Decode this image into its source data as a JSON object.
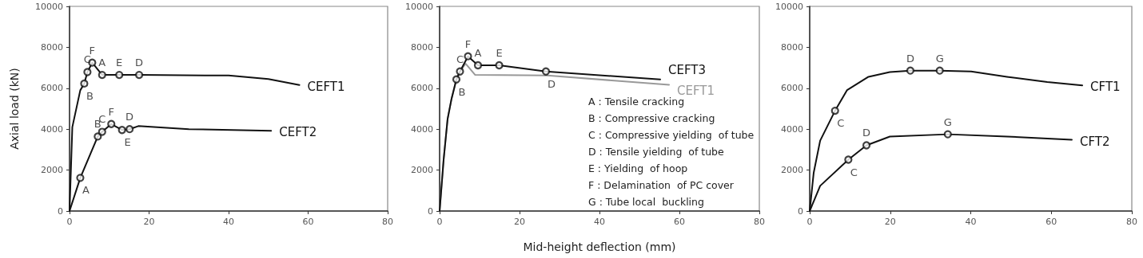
{
  "chart_data": [
    {
      "type": "line",
      "ylabel": "Axial load (kN)",
      "xlim": [
        0,
        80
      ],
      "xticks": [
        0,
        20,
        40,
        60,
        80
      ],
      "ylim": [
        0,
        10000
      ],
      "yticks": [
        0,
        2000,
        4000,
        6000,
        8000,
        10000
      ],
      "grid": false,
      "legend": false,
      "series": [
        {
          "name": "CEFT1",
          "marker": "none",
          "color": "#111111",
          "x": [
            0,
            0.7,
            2.7,
            3.7,
            4.5,
            5.7,
            8.2,
            12.5,
            17.5,
            40,
            50,
            57.8
          ],
          "values": [
            0,
            4100,
            5900,
            6230,
            6790,
            7250,
            6650,
            6650,
            6650,
            6620,
            6450,
            6160
          ]
        },
        {
          "name": "CEFT2",
          "marker": "none",
          "color": "#111111",
          "x": [
            0,
            2.7,
            7.1,
            8.2,
            10.5,
            13.2,
            15.1,
            17.3,
            30,
            50.7
          ],
          "values": [
            0,
            1620,
            3640,
            3870,
            4250,
            3960,
            4000,
            4150,
            4000,
            3920
          ]
        },
        {
          "type": "scatter",
          "marker": "circle",
          "color": "#111111",
          "x": [
            3.7,
            4.5,
            5.7,
            8.2,
            12.5,
            17.5
          ],
          "values": [
            6230,
            6790,
            7250,
            6650,
            6650,
            6650
          ],
          "value_labels": [
            "B",
            "C",
            "F",
            "A",
            "E",
            "D"
          ]
        },
        {
          "type": "scatter",
          "marker": "circle",
          "color": "#111111",
          "x": [
            2.7,
            7.1,
            8.2,
            10.5,
            13.2,
            15.1
          ],
          "values": [
            1620,
            3640,
            3870,
            4250,
            3960,
            4000
          ],
          "value_labels": [
            "A",
            "B",
            "C",
            "F",
            "E",
            "D"
          ]
        }
      ]
    },
    {
      "type": "line",
      "xlabel": "Mid-height deflection (mm)",
      "xlim": [
        0,
        80
      ],
      "xticks": [
        0,
        20,
        40,
        60,
        80
      ],
      "ylim": [
        0,
        10000
      ],
      "yticks": [
        0,
        2000,
        4000,
        6000,
        8000,
        10000
      ],
      "grid": false,
      "legend": false,
      "series": [
        {
          "name": "CEFT1",
          "marker": "none",
          "color": "#999999",
          "x": [
            0,
            1,
            2,
            3,
            4.2,
            5.1,
            6.5,
            8.9,
            27,
            57.4
          ],
          "values": [
            0,
            2500,
            4500,
            5500,
            6430,
            6820,
            7200,
            6650,
            6620,
            6170
          ]
        },
        {
          "name": "CEFT3",
          "marker": "none",
          "color": "#111111",
          "x": [
            0,
            1,
            2,
            3,
            4.2,
            5.1,
            7.1,
            9.6,
            14.9,
            26.6,
            55.2
          ],
          "values": [
            0,
            2500,
            4500,
            5500,
            6430,
            6820,
            7560,
            7120,
            7120,
            6820,
            6430
          ]
        },
        {
          "type": "scatter",
          "marker": "circle",
          "color": "#111111",
          "x": [
            4.2,
            5.1,
            7.1,
            9.6,
            14.9,
            26.6
          ],
          "values": [
            6430,
            6820,
            7560,
            7120,
            7120,
            6820
          ],
          "value_labels": [
            "B",
            "C",
            "F",
            "A",
            "E",
            "D"
          ]
        }
      ],
      "annotations": [
        "A : Tensile cracking",
        "B : Compressive cracking",
        "C : Compressive yielding  of tube",
        "D : Tensile yielding  of tube",
        "E : Yielding  of hoop",
        "F : Delamination  of PC cover",
        "G : Tube local  buckling"
      ]
    },
    {
      "type": "line",
      "xlim": [
        0,
        80
      ],
      "xticks": [
        0,
        20,
        40,
        60,
        80
      ],
      "ylim": [
        0,
        10000
      ],
      "yticks": [
        0,
        2000,
        4000,
        6000,
        8000,
        10000
      ],
      "grid": false,
      "legend": false,
      "series": [
        {
          "name": "CFT1",
          "marker": "none",
          "color": "#111111",
          "x": [
            0,
            1,
            2.6,
            6.3,
            9.3,
            14.6,
            19.9,
            25,
            32.3,
            40.1,
            49,
            59,
            67.7
          ],
          "values": [
            0,
            1880,
            3440,
            4900,
            5910,
            6560,
            6790,
            6860,
            6860,
            6820,
            6560,
            6300,
            6140
          ]
        },
        {
          "name": "CFT2",
          "marker": "none",
          "color": "#111111",
          "x": [
            0,
            2.6,
            9.6,
            14.1,
            19.9,
            34.3,
            49,
            65.1
          ],
          "values": [
            0,
            1230,
            2510,
            3210,
            3640,
            3750,
            3640,
            3480
          ]
        },
        {
          "type": "scatter",
          "marker": "circle",
          "color": "#111111",
          "x": [
            6.3,
            25,
            32.3
          ],
          "values": [
            4900,
            6860,
            6860
          ],
          "value_labels": [
            "C",
            "D",
            "G"
          ]
        },
        {
          "type": "scatter",
          "marker": "circle",
          "color": "#111111",
          "x": [
            9.6,
            14.1,
            34.3
          ],
          "values": [
            2510,
            3210,
            3750
          ],
          "value_labels": [
            "C",
            "D",
            "G"
          ]
        }
      ]
    }
  ]
}
